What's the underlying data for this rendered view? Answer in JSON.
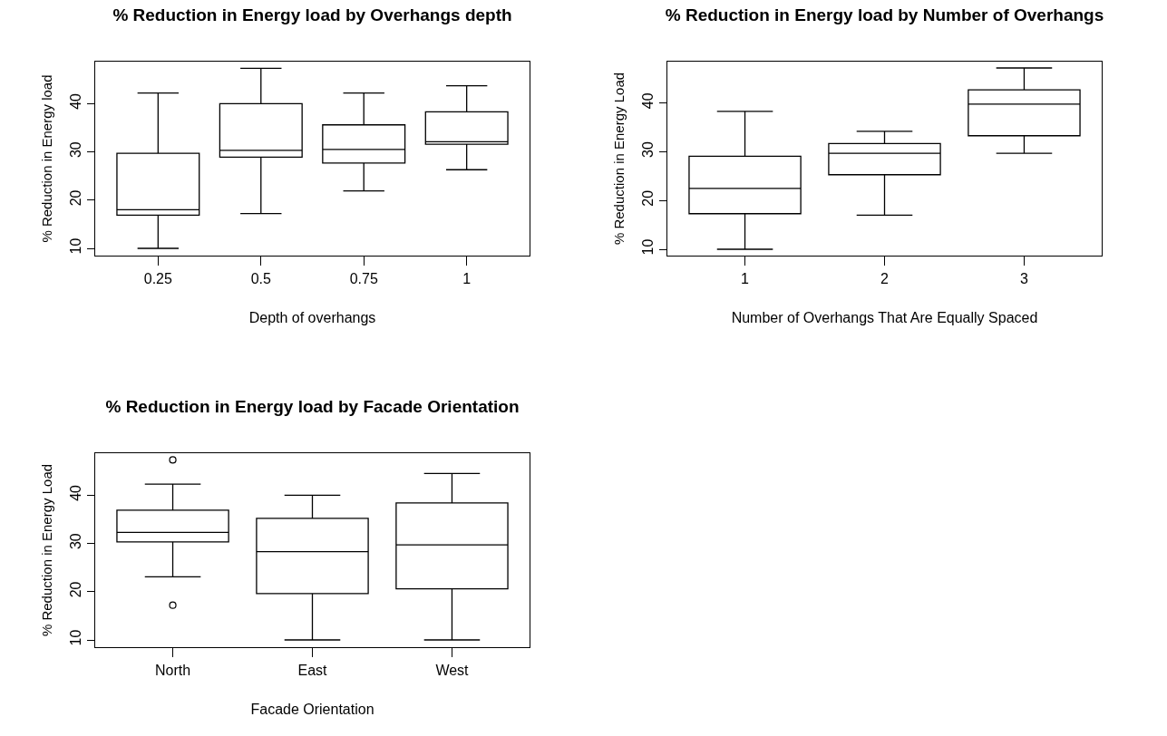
{
  "chart_data": [
    {
      "type": "box",
      "title": "% Reduction in Energy load by Overhangs depth",
      "xlabel": "Depth of overhangs",
      "ylabel": "% Reduction in Energy load",
      "categories": [
        "0.25",
        "0.5",
        "0.75",
        "1"
      ],
      "ylim": [
        8.5,
        48.7
      ],
      "yticks": [
        10,
        20,
        30,
        40
      ],
      "boxes": [
        {
          "low": 10,
          "q1": 16.9,
          "median": 18.0,
          "q3": 29.7,
          "high": 42.2
        },
        {
          "low": 17.2,
          "q1": 28.9,
          "median": 30.3,
          "q3": 40.0,
          "high": 47.3
        },
        {
          "low": 21.9,
          "q1": 27.7,
          "median": 30.5,
          "q3": 35.6,
          "high": 42.2
        },
        {
          "low": 26.3,
          "q1": 31.6,
          "median": 32.1,
          "q3": 38.3,
          "high": 43.7
        }
      ]
    },
    {
      "type": "box",
      "title": "% Reduction in Energy load by Number of Overhangs",
      "xlabel": "Number of Overhangs That Are Equally Spaced",
      "ylabel": "% Reduction in Energy Load",
      "categories": [
        "1",
        "2",
        "3"
      ],
      "ylim": [
        8.7,
        48.5
      ],
      "yticks": [
        10,
        20,
        30,
        40
      ],
      "boxes": [
        {
          "low": 10,
          "q1": 17.3,
          "median": 22.5,
          "q3": 29.1,
          "high": 38.3
        },
        {
          "low": 17.0,
          "q1": 25.3,
          "median": 29.7,
          "q3": 31.7,
          "high": 34.2
        },
        {
          "low": 29.7,
          "q1": 33.3,
          "median": 39.8,
          "q3": 42.7,
          "high": 47.2
        }
      ]
    },
    {
      "type": "box",
      "title": "% Reduction in Energy load by Facade Orientation",
      "xlabel": "Facade Orientation",
      "ylabel": "% Reduction in Energy Load",
      "categories": [
        "North",
        "East",
        "West"
      ],
      "ylim": [
        8.5,
        48.7
      ],
      "yticks": [
        10,
        20,
        30,
        40
      ],
      "boxes": [
        {
          "low": 23.1,
          "q1": 30.3,
          "median": 32.3,
          "q3": 36.9,
          "high": 42.3,
          "outliers": [
            47.3,
            17.2
          ]
        },
        {
          "low": 10,
          "q1": 19.6,
          "median": 28.3,
          "q3": 35.2,
          "high": 40.0
        },
        {
          "low": 10,
          "q1": 20.6,
          "median": 29.7,
          "q3": 38.4,
          "high": 44.5
        }
      ]
    }
  ]
}
